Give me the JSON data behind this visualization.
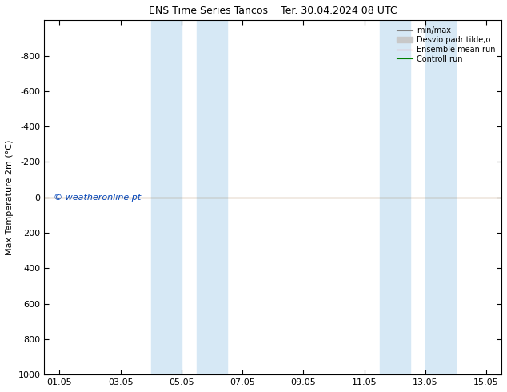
{
  "title_left": "ENS Time Series Tancos",
  "title_right": "Ter. 30.04.2024 08 UTC",
  "ylabel": "Max Temperature 2m (°C)",
  "ylim_bottom": 1000,
  "ylim_top": -1000,
  "ytick_values": [
    -800,
    -600,
    -400,
    -200,
    0,
    200,
    400,
    600,
    800,
    1000
  ],
  "xtick_labels": [
    "01.05",
    "03.05",
    "05.05",
    "07.05",
    "09.05",
    "11.05",
    "13.05",
    "15.05"
  ],
  "xtick_positions": [
    0,
    2,
    4,
    6,
    8,
    10,
    12,
    14
  ],
  "blue_bands": [
    [
      3.0,
      4.0
    ],
    [
      4.5,
      5.5
    ],
    [
      10.5,
      11.5
    ],
    [
      12.0,
      13.0
    ]
  ],
  "control_run_y": 0,
  "ensemble_mean_y": 0,
  "copyright_text": "© weatheronline.pt",
  "legend_labels": [
    "min/max",
    "Desvio padr tilde;o",
    "Ensemble mean run",
    "Controll run"
  ],
  "color_minmax": "#808080",
  "color_std": "#c8c8c8",
  "color_ensemble": "#ff0000",
  "color_control": "#008000",
  "bg_color": "#ffffff",
  "band_color": "#d6e8f5",
  "copyright_color": "#0044bb",
  "figsize": [
    6.34,
    4.9
  ],
  "dpi": 100,
  "title_fontsize": 9,
  "axis_fontsize": 8,
  "legend_fontsize": 7
}
